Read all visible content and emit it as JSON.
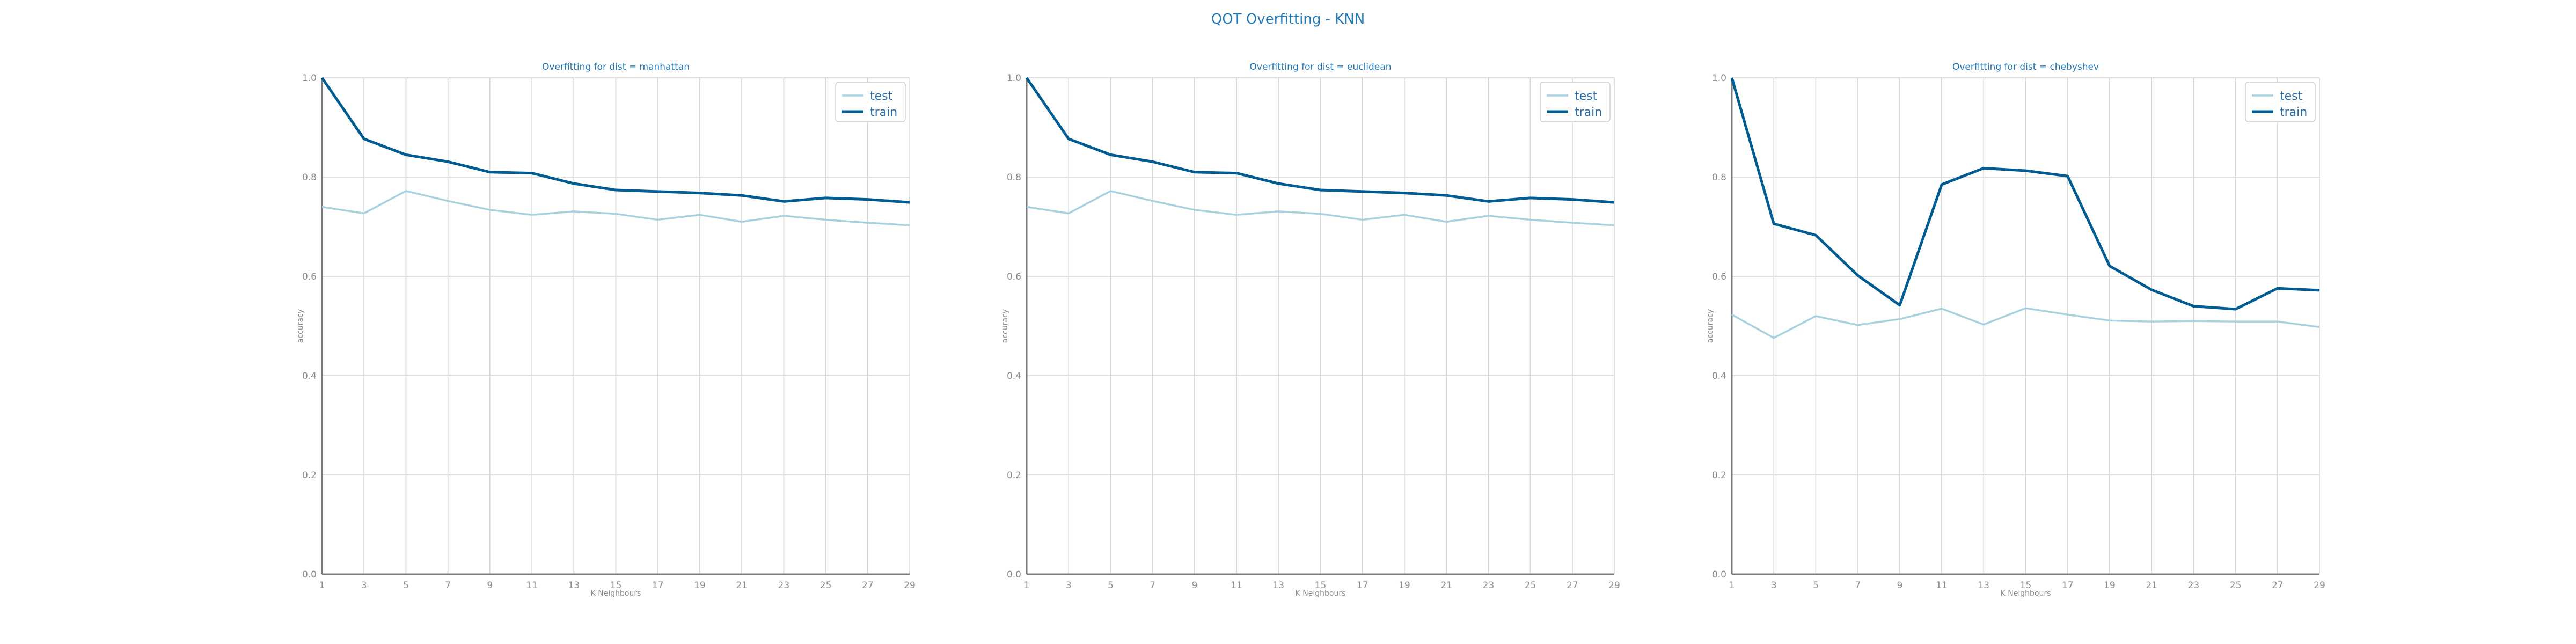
{
  "suptitle": "QOT Overfitting - KNN",
  "colors": {
    "test": "#a6d2e0",
    "train": "#015c92",
    "title": "#1f77b4"
  },
  "chart_data": [
    {
      "type": "line",
      "title": "Overfitting for dist = manhattan",
      "xlabel": "K Neighbours",
      "ylabel": "accuracy",
      "ylim": [
        0.0,
        1.0
      ],
      "xlim": [
        1,
        29
      ],
      "xticks": [
        1,
        3,
        5,
        7,
        9,
        11,
        13,
        15,
        17,
        19,
        21,
        23,
        25,
        27,
        29
      ],
      "yticks": [
        "0.0",
        "0.2",
        "0.4",
        "0.6",
        "0.8",
        "1.0"
      ],
      "grid": true,
      "legend": "top-right",
      "x": [
        1,
        3,
        5,
        7,
        9,
        11,
        13,
        15,
        17,
        19,
        21,
        23,
        25,
        27,
        29
      ],
      "series": [
        {
          "name": "test",
          "values": [
            0.74,
            0.727,
            0.772,
            0.752,
            0.734,
            0.724,
            0.731,
            0.726,
            0.714,
            0.724,
            0.71,
            0.722,
            0.714,
            0.708,
            0.703
          ]
        },
        {
          "name": "train",
          "values": [
            1.0,
            0.877,
            0.845,
            0.831,
            0.81,
            0.808,
            0.787,
            0.774,
            0.771,
            0.768,
            0.763,
            0.751,
            0.758,
            0.755,
            0.749
          ]
        }
      ]
    },
    {
      "type": "line",
      "title": "Overfitting for dist = euclidean",
      "xlabel": "K Neighbours",
      "ylabel": "accuracy",
      "ylim": [
        0.0,
        1.0
      ],
      "xlim": [
        1,
        29
      ],
      "xticks": [
        1,
        3,
        5,
        7,
        9,
        11,
        13,
        15,
        17,
        19,
        21,
        23,
        25,
        27,
        29
      ],
      "yticks": [
        "0.0",
        "0.2",
        "0.4",
        "0.6",
        "0.8",
        "1.0"
      ],
      "grid": true,
      "legend": "top-right",
      "x": [
        1,
        3,
        5,
        7,
        9,
        11,
        13,
        15,
        17,
        19,
        21,
        23,
        25,
        27,
        29
      ],
      "series": [
        {
          "name": "test",
          "values": [
            0.74,
            0.727,
            0.772,
            0.752,
            0.734,
            0.724,
            0.731,
            0.726,
            0.714,
            0.724,
            0.71,
            0.722,
            0.714,
            0.708,
            0.703
          ]
        },
        {
          "name": "train",
          "values": [
            1.0,
            0.877,
            0.845,
            0.831,
            0.81,
            0.808,
            0.787,
            0.774,
            0.771,
            0.768,
            0.763,
            0.751,
            0.758,
            0.755,
            0.749
          ]
        }
      ]
    },
    {
      "type": "line",
      "title": "Overfitting for dist = chebyshev",
      "xlabel": "K Neighbours",
      "ylabel": "accuracy",
      "ylim": [
        0.0,
        1.0
      ],
      "xlim": [
        1,
        29
      ],
      "xticks": [
        1,
        3,
        5,
        7,
        9,
        11,
        13,
        15,
        17,
        19,
        21,
        23,
        25,
        27,
        29
      ],
      "yticks": [
        "0.0",
        "0.2",
        "0.4",
        "0.6",
        "0.8",
        "1.0"
      ],
      "grid": true,
      "legend": "top-right",
      "x": [
        1,
        3,
        5,
        7,
        9,
        11,
        13,
        15,
        17,
        19,
        21,
        23,
        25,
        27,
        29
      ],
      "series": [
        {
          "name": "test",
          "values": [
            0.523,
            0.476,
            0.52,
            0.502,
            0.514,
            0.535,
            0.503,
            0.536,
            0.523,
            0.511,
            0.509,
            0.51,
            0.509,
            0.509,
            0.498
          ]
        },
        {
          "name": "train",
          "values": [
            1.0,
            0.706,
            0.683,
            0.602,
            0.542,
            0.785,
            0.818,
            0.813,
            0.802,
            0.621,
            0.573,
            0.54,
            0.534,
            0.576,
            0.572
          ]
        }
      ]
    }
  ]
}
